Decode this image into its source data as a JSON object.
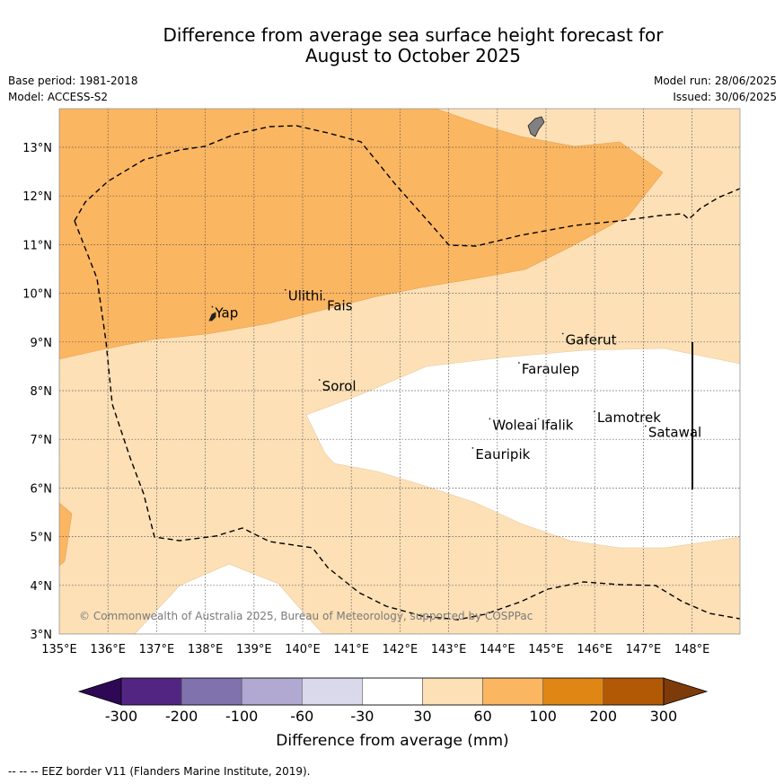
{
  "title": {
    "line1": "Difference from average sea surface height forecast for",
    "line2": "August to October 2025"
  },
  "meta": {
    "base_period": "Base period: 1981-2018",
    "model": "Model: ACCESS-S2",
    "model_run": "Model run: 28/06/2025",
    "issued": "Issued: 30/06/2025"
  },
  "map": {
    "lon_range": [
      135,
      149
    ],
    "lat_range": [
      3,
      13.8
    ],
    "lon_ticks": [
      135,
      136,
      137,
      138,
      139,
      140,
      141,
      142,
      143,
      144,
      145,
      146,
      147,
      148
    ],
    "lat_ticks": [
      3,
      4,
      5,
      6,
      7,
      8,
      9,
      10,
      11,
      12,
      13
    ],
    "lon_tick_labels": [
      "135°E",
      "136°E",
      "137°E",
      "138°E",
      "139°E",
      "140°E",
      "141°E",
      "142°E",
      "143°E",
      "144°E",
      "145°E",
      "146°E",
      "147°E",
      "148°E"
    ],
    "lat_tick_labels": [
      "3°N",
      "4°N",
      "5°N",
      "6°N",
      "7°N",
      "8°N",
      "9°N",
      "10°N",
      "11°N",
      "12°N",
      "13°N"
    ],
    "places": [
      {
        "name": "Yap",
        "lon": 138.2,
        "lat": 9.5
      },
      {
        "name": "Ulithi",
        "lon": 139.7,
        "lat": 9.85
      },
      {
        "name": "Fais",
        "lon": 140.5,
        "lat": 9.65
      },
      {
        "name": "Sorol",
        "lon": 140.4,
        "lat": 8.0
      },
      {
        "name": "Gaferut",
        "lon": 145.4,
        "lat": 8.95
      },
      {
        "name": "Faraulep",
        "lon": 144.5,
        "lat": 8.35
      },
      {
        "name": "Woleai",
        "lon": 143.9,
        "lat": 7.2
      },
      {
        "name": "Ifalik",
        "lon": 144.9,
        "lat": 7.2
      },
      {
        "name": "Lamotrek",
        "lon": 146.05,
        "lat": 7.35
      },
      {
        "name": "Satawal",
        "lon": 147.1,
        "lat": 7.05
      },
      {
        "name": "Eauripik",
        "lon": 143.55,
        "lat": 6.6
      }
    ],
    "copyright": "© Commonwealth of Australia 2025, Bureau of Meteorology, supported by COSPPac",
    "colors": {
      "band_30_60": "#fde0b6",
      "band_60_100": "#fbb661",
      "band_neutral": "#ffffff",
      "land": "#808080"
    }
  },
  "colorbar": {
    "boundaries": [
      "-300",
      "-200",
      "-100",
      "-60",
      "-30",
      "30",
      "60",
      "100",
      "200",
      "300"
    ],
    "colors": [
      "#532583",
      "#8072ac",
      "#b1a9d1",
      "#d9d9eb",
      "#ffffff",
      "#fde0b6",
      "#fbb661",
      "#e08614",
      "#b25906"
    ],
    "extend_low_color": "#2e0854",
    "extend_high_color": "#7e3b0a",
    "label": "Difference from average (mm)"
  },
  "footer": "-- -- -- EEZ border V11 (Flanders Marine Institute, 2019)."
}
